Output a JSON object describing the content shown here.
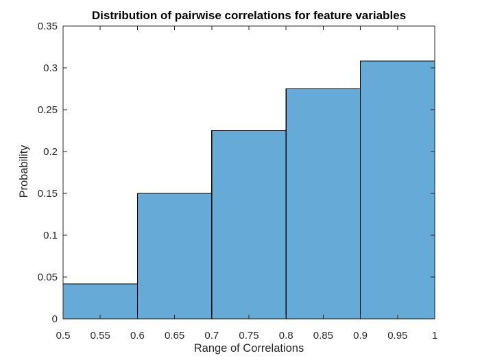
{
  "chart_data": {
    "type": "bar",
    "subtype": "histogram",
    "title": "Distribution of pairwise correlations for feature variables",
    "xlabel": "Range of Correlations",
    "ylabel": "Probability",
    "bin_edges": [
      0.5,
      0.6,
      0.7,
      0.8,
      0.9,
      1.0
    ],
    "values": [
      0.0417,
      0.15,
      0.225,
      0.275,
      0.3083
    ],
    "bins": [
      "0.5-0.6",
      "0.6-0.7",
      "0.7-0.8",
      "0.8-0.9",
      "0.9-1.0"
    ],
    "xlim": [
      0.5,
      1
    ],
    "ylim": [
      0,
      0.35
    ],
    "x_ticks": [
      0.5,
      0.55,
      0.6,
      0.65,
      0.7,
      0.75,
      0.8,
      0.85,
      0.9,
      0.95,
      1
    ],
    "x_tick_labels": [
      "0.5",
      "0.55",
      "0.6",
      "0.65",
      "0.7",
      "0.75",
      "0.8",
      "0.85",
      "0.9",
      "0.95",
      "1"
    ],
    "y_ticks": [
      0,
      0.05,
      0.1,
      0.15,
      0.2,
      0.25,
      0.3,
      0.35
    ],
    "y_tick_labels": [
      "0",
      "0.05",
      "0.1",
      "0.15",
      "0.2",
      "0.25",
      "0.3",
      "0.35"
    ],
    "grid": false,
    "legend": "none",
    "colors": {
      "bar_fill": "#66AAD7",
      "bar_edge": "#000000",
      "axis": "#262626",
      "tick_label": "#262626",
      "label": "#262626",
      "title": "#000000",
      "background": "#FFFFFF"
    }
  }
}
